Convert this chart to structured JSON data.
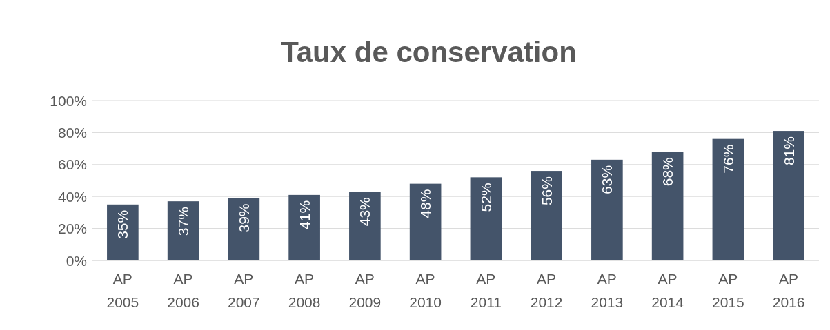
{
  "chart_data": {
    "type": "bar",
    "title": "Taux de conservation",
    "categories": [
      "AP 2005",
      "AP 2006",
      "AP 2007",
      "AP 2008",
      "AP 2009",
      "AP 2010",
      "AP 2011",
      "AP 2012",
      "AP 2013",
      "AP 2014",
      "AP 2015",
      "AP 2016"
    ],
    "values": [
      35,
      37,
      39,
      41,
      43,
      48,
      52,
      56,
      63,
      68,
      76,
      81
    ],
    "value_labels": [
      "35%",
      "37%",
      "39%",
      "41%",
      "43%",
      "48%",
      "52%",
      "56%",
      "63%",
      "68%",
      "76%",
      "81%"
    ],
    "color": "#44546a",
    "ylim": [
      0,
      100
    ],
    "yticks": [
      {
        "value": 0,
        "label": "0%"
      },
      {
        "value": 20,
        "label": "20%"
      },
      {
        "value": 40,
        "label": "40%"
      },
      {
        "value": 60,
        "label": "60%"
      },
      {
        "value": 80,
        "label": "80%"
      },
      {
        "value": 100,
        "label": "100%"
      }
    ],
    "grid": "y"
  }
}
